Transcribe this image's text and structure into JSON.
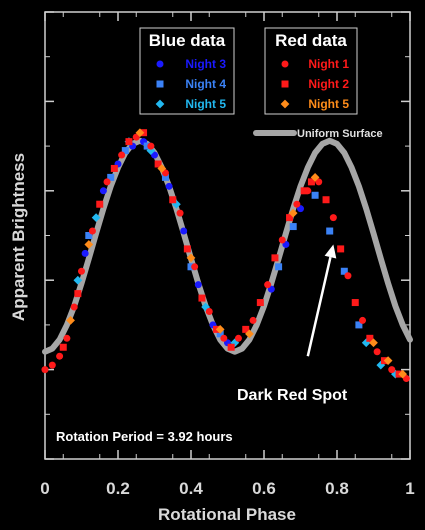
{
  "chart_data": {
    "type": "scatter",
    "xlabel": "Rotational Phase",
    "ylabel": "Apparent Brightness",
    "xlim": [
      0,
      1
    ],
    "ylim": [
      0,
      10
    ],
    "x_ticks": [
      "0",
      "0.2",
      "0.4",
      "0.6",
      "0.8",
      "1"
    ],
    "x_tick_values": [
      0,
      0.2,
      0.4,
      0.6,
      0.8,
      1.0
    ],
    "y_ticks_labeled": false,
    "grid": false,
    "legend_groups": [
      {
        "title": "Blue data",
        "entries": [
          {
            "name": "Night 3",
            "color": "#1a1aff",
            "marker": "circle"
          },
          {
            "name": "Night 4",
            "color": "#3b82f6",
            "marker": "square"
          },
          {
            "name": "Night 5",
            "color": "#22b8f0",
            "marker": "diamond"
          }
        ]
      },
      {
        "title": "Red data",
        "entries": [
          {
            "name": "Night 1",
            "color": "#ff1a1a",
            "marker": "circle"
          },
          {
            "name": "Night 2",
            "color": "#ff1a1a",
            "marker": "square"
          },
          {
            "name": "Night 5",
            "color": "#ff8c1a",
            "marker": "diamond"
          }
        ]
      }
    ],
    "model_curve": {
      "name": "Uniform Surface",
      "color": "#a6a6a6",
      "x": [
        0.0,
        0.02,
        0.04,
        0.06,
        0.08,
        0.1,
        0.12,
        0.14,
        0.16,
        0.18,
        0.2,
        0.22,
        0.24,
        0.26,
        0.28,
        0.3,
        0.32,
        0.34,
        0.36,
        0.38,
        0.4,
        0.42,
        0.44,
        0.46,
        0.48,
        0.5,
        0.52,
        0.54,
        0.56,
        0.58,
        0.6,
        0.62,
        0.64,
        0.66,
        0.68,
        0.7,
        0.72,
        0.74,
        0.76,
        0.78,
        0.8,
        0.82,
        0.84,
        0.86,
        0.88,
        0.9,
        0.92,
        0.94,
        0.96,
        0.98,
        1.0
      ],
      "y": [
        2.4,
        2.47,
        2.67,
        3.0,
        3.42,
        3.93,
        4.48,
        5.05,
        5.6,
        6.1,
        6.52,
        6.85,
        7.05,
        7.12,
        7.05,
        6.85,
        6.52,
        6.1,
        5.6,
        5.05,
        4.48,
        3.93,
        3.42,
        3.0,
        2.67,
        2.47,
        2.4,
        2.47,
        2.67,
        3.0,
        3.42,
        3.93,
        4.48,
        5.05,
        5.6,
        6.1,
        6.52,
        6.85,
        7.05,
        7.12,
        7.05,
        6.85,
        6.52,
        6.1,
        5.6,
        5.05,
        4.48,
        3.93,
        3.42,
        3.0,
        2.67
      ]
    },
    "series": [
      {
        "name": "Night 3",
        "group": "Blue data",
        "color": "#1a1aff",
        "marker": "circle",
        "x": [
          0.11,
          0.16,
          0.2,
          0.24,
          0.27,
          0.3,
          0.34,
          0.38,
          0.42,
          0.46,
          0.5,
          0.62,
          0.66,
          0.7
        ],
        "y": [
          4.6,
          6.0,
          6.6,
          7.0,
          7.1,
          6.8,
          6.1,
          5.1,
          3.9,
          3.0,
          2.6,
          3.8,
          4.8,
          5.6
        ]
      },
      {
        "name": "Night 4",
        "group": "Blue data",
        "color": "#3b82f6",
        "marker": "square",
        "x": [
          0.12,
          0.18,
          0.22,
          0.28,
          0.33,
          0.4,
          0.48,
          0.64,
          0.68,
          0.74,
          0.78,
          0.82,
          0.86
        ],
        "y": [
          5.0,
          6.3,
          6.9,
          7.0,
          6.3,
          4.3,
          2.8,
          4.3,
          5.2,
          5.9,
          5.1,
          4.2,
          3.0
        ]
      },
      {
        "name": "Night 5",
        "group": "Blue data",
        "color": "#22b8f0",
        "marker": "diamond",
        "x": [
          0.09,
          0.14,
          0.23,
          0.29,
          0.36,
          0.44,
          0.52,
          0.88,
          0.92,
          0.96
        ],
        "y": [
          4.0,
          5.4,
          7.1,
          6.9,
          5.7,
          3.4,
          2.6,
          2.6,
          2.1,
          1.9
        ]
      },
      {
        "name": "Night 1",
        "group": "Red data",
        "color": "#ff1a1a",
        "marker": "circle",
        "x": [
          0.0,
          0.02,
          0.04,
          0.06,
          0.08,
          0.1,
          0.13,
          0.17,
          0.21,
          0.25,
          0.29,
          0.33,
          0.37,
          0.41,
          0.45,
          0.49,
          0.53,
          0.57,
          0.61,
          0.65,
          0.69,
          0.72,
          0.75,
          0.79,
          0.83,
          0.87,
          0.91,
          0.95,
          0.99
        ],
        "y": [
          2.0,
          2.1,
          2.3,
          2.7,
          3.4,
          4.2,
          5.1,
          6.2,
          6.8,
          7.2,
          7.0,
          6.4,
          5.5,
          4.3,
          3.3,
          2.7,
          2.7,
          3.1,
          3.9,
          4.9,
          5.7,
          6.0,
          6.2,
          5.4,
          4.1,
          3.1,
          2.4,
          2.0,
          1.8
        ]
      },
      {
        "name": "Night 2",
        "group": "Red data",
        "color": "#ff1a1a",
        "marker": "square",
        "x": [
          0.05,
          0.09,
          0.15,
          0.19,
          0.23,
          0.27,
          0.31,
          0.35,
          0.39,
          0.43,
          0.47,
          0.51,
          0.55,
          0.59,
          0.63,
          0.67,
          0.71,
          0.73,
          0.77,
          0.81,
          0.85,
          0.89,
          0.93,
          0.97
        ],
        "y": [
          2.5,
          3.7,
          5.7,
          6.5,
          7.1,
          7.3,
          6.6,
          5.8,
          4.7,
          3.6,
          2.9,
          2.5,
          2.9,
          3.5,
          4.5,
          5.4,
          6.0,
          6.2,
          5.8,
          4.7,
          3.5,
          2.7,
          2.2,
          1.9
        ]
      },
      {
        "name": "Night 5",
        "group": "Red data",
        "color": "#ff8c1a",
        "marker": "diamond",
        "x": [
          0.07,
          0.12,
          0.26,
          0.32,
          0.4,
          0.48,
          0.56,
          0.68,
          0.74,
          0.9,
          0.94,
          0.98
        ],
        "y": [
          3.1,
          4.8,
          7.3,
          6.5,
          4.5,
          2.9,
          2.8,
          5.5,
          6.3,
          2.6,
          2.2,
          1.9
        ]
      }
    ],
    "annotations": [
      {
        "text": "Dark Red Spot",
        "arrow_to": [
          0.79,
          4.8
        ],
        "arrow_from": [
          0.72,
          2.3
        ]
      },
      {
        "text": "Rotation Period = 3.92 hours"
      }
    ]
  }
}
